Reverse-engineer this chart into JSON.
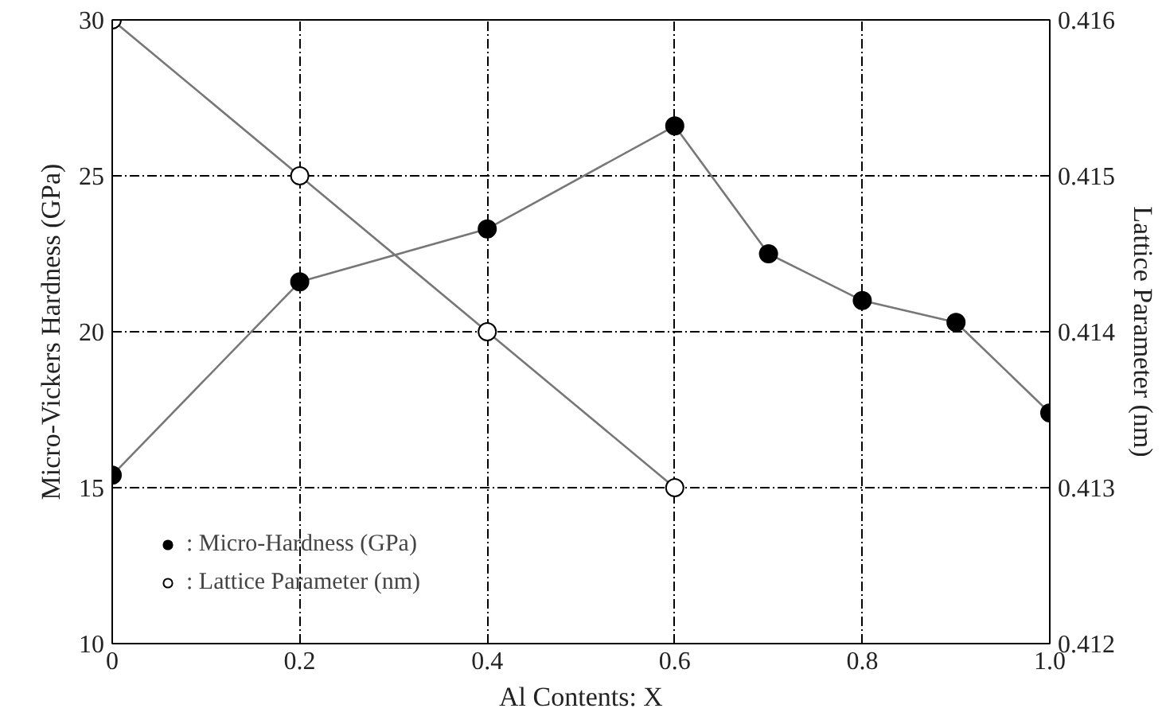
{
  "chart_data": {
    "type": "line",
    "xlabel": "Al Contents: X",
    "ylabel": "Micro-Vickers Hardness (GPa)",
    "y2label": "Lattice Parameter (nm)",
    "xlim": [
      0,
      1
    ],
    "xticks": [
      0,
      0.2,
      0.4,
      0.6,
      0.8,
      {
        "value": 1,
        "label": "1.0"
      }
    ],
    "ylim": [
      10,
      30
    ],
    "yticks": [
      10,
      15,
      20,
      25,
      30
    ],
    "y2lim": [
      0.412,
      0.416
    ],
    "y2ticks": [
      0.412,
      0.413,
      0.414,
      0.415,
      0.416
    ],
    "grid": true,
    "legend": "bottom left",
    "marker": "circle",
    "line_style": "solid",
    "series": [
      {
        "name": ": Micro-Hardness (GPa)",
        "color": "#000000",
        "x": [
          0,
          0.2,
          0.4,
          0.6,
          0.7,
          0.8,
          0.9,
          1.0
        ],
        "values": [
          15.4,
          21.6,
          23.3,
          26.6,
          22.5,
          21.0,
          20.3,
          17.4
        ]
      },
      {
        "name": ": Lattice Parameter (nm)",
        "color": "#ffffff",
        "axis": "y2",
        "x": [
          0,
          0.2,
          0.4,
          0.6
        ],
        "values": [
          0.416,
          0.415,
          0.414,
          0.413
        ]
      }
    ]
  }
}
